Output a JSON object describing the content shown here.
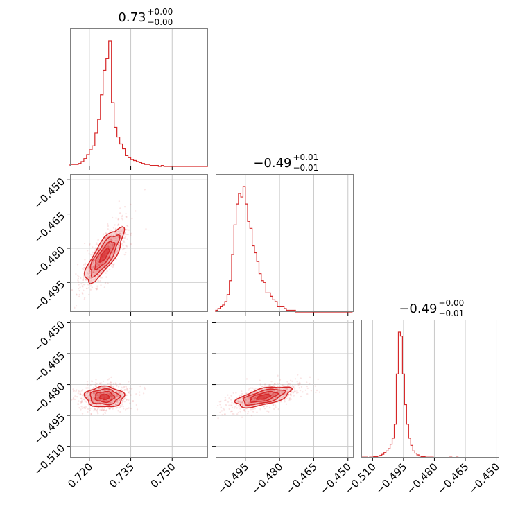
{
  "chart_data": {
    "type": "corner",
    "color": "#d62728",
    "grid": true,
    "parameters": [
      {
        "title_value": "0.73",
        "title_plus": "+0.00",
        "title_minus": "−0.00",
        "ticks": [
          0.72,
          0.735,
          0.75
        ],
        "tick_labels": [
          "0.720",
          "0.735",
          "0.750"
        ],
        "range": [
          0.713,
          0.763
        ]
      },
      {
        "title_value": "−0.49",
        "title_plus": "+0.01",
        "title_minus": "−0.01",
        "ticks": [
          -0.495,
          -0.48,
          -0.465,
          -0.45
        ],
        "tick_labels": [
          "−0.495",
          "−0.480",
          "−0.465",
          "−0.450"
        ],
        "range": [
          -0.508,
          -0.4475
        ]
      },
      {
        "title_value": "−0.49",
        "title_plus": "+0.00",
        "title_minus": "−0.01",
        "ticks": [
          -0.51,
          -0.495,
          -0.48,
          -0.465,
          -0.45
        ],
        "tick_labels": [
          "−0.510",
          "−0.495",
          "−0.480",
          "−0.465",
          "−0.450"
        ],
        "range": [
          -0.5155,
          -0.4485
        ]
      }
    ],
    "histograms": [
      {
        "param": 0,
        "bin_start": 0.713,
        "bin_width": 0.001,
        "counts": [
          2,
          2,
          2,
          3,
          5,
          8,
          12,
          17,
          21,
          34,
          48,
          73,
          98,
          110,
          128,
          65,
          40,
          30,
          23,
          18,
          11,
          9,
          7,
          6,
          5,
          4,
          3,
          2,
          2,
          1,
          1,
          1,
          0,
          1,
          0,
          0,
          0,
          0,
          0,
          0,
          0,
          0,
          0,
          0,
          0,
          0,
          0,
          0,
          0,
          0
        ]
      },
      {
        "param": 1,
        "bin_start": -0.508,
        "bin_width": 0.001,
        "counts": [
          1,
          2,
          3,
          4,
          6,
          10,
          18,
          33,
          50,
          62,
          68,
          66,
          72,
          62,
          52,
          48,
          38,
          34,
          29,
          22,
          18,
          17,
          11,
          11,
          9,
          7,
          6,
          3,
          3,
          3,
          2,
          1,
          1,
          1,
          1,
          0,
          0,
          0,
          0,
          0,
          0,
          0,
          0,
          0,
          0,
          0,
          0,
          0,
          0,
          0,
          0,
          0,
          0,
          0,
          0,
          0,
          0,
          0,
          0,
          0
        ]
      },
      {
        "param": 2,
        "bin_start": -0.5155,
        "bin_width": 0.001,
        "counts": [
          1,
          1,
          1,
          0,
          1,
          1,
          2,
          2,
          3,
          4,
          6,
          9,
          12,
          16,
          24,
          35,
          60,
          150,
          225,
          218,
          150,
          95,
          60,
          35,
          22,
          12,
          8,
          5,
          3,
          2,
          2,
          1,
          1,
          1,
          1,
          0,
          0,
          0,
          0,
          0,
          0,
          0,
          0,
          1,
          0,
          0,
          1,
          0,
          0,
          0,
          0,
          0,
          0,
          0,
          0,
          0,
          0,
          0,
          0,
          0,
          0,
          0,
          0,
          0,
          0,
          0,
          0
        ]
      }
    ],
    "scatter_panels": [
      {
        "x_param": 0,
        "y_param": 1,
        "center": [
          0.7255,
          -0.483
        ],
        "sigma": [
          0.0035,
          0.006
        ],
        "correlation": 0.8
      },
      {
        "x_param": 0,
        "y_param": 2,
        "center": [
          0.7255,
          -0.486
        ],
        "sigma": [
          0.0035,
          0.0025
        ],
        "correlation": 0.0
      },
      {
        "x_param": 1,
        "y_param": 2,
        "center": [
          -0.487,
          -0.486
        ],
        "sigma": [
          0.006,
          0.0025
        ],
        "correlation": 0.6
      }
    ]
  }
}
